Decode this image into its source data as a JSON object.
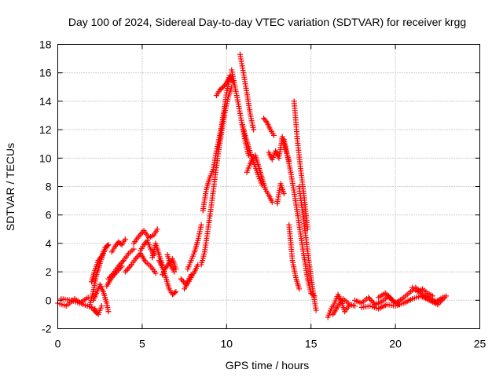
{
  "colors": {
    "series": "#ff0000",
    "axis": "#000000",
    "grid": "#a0a0a0"
  },
  "chart_data": {
    "type": "scatter",
    "title": "Day 100 of 2024, Sidereal Day-to-day VTEC variation (SDTVAR) for receiver krgg",
    "xlabel": "GPS time / hours",
    "ylabel": "SDTVAR / TECUs",
    "xlim": [
      0,
      25
    ],
    "ylim": [
      -2,
      18
    ],
    "xticks": [
      0,
      5,
      10,
      15,
      20,
      25
    ],
    "yticks": [
      -2,
      0,
      2,
      4,
      6,
      8,
      10,
      12,
      14,
      16,
      18
    ],
    "grid": true,
    "marker": "+",
    "series": [
      {
        "name": "SDTVAR",
        "segments": [
          {
            "x": [
              0,
              0.5,
              1.0,
              1.5,
              2.0,
              2.3
            ],
            "y": [
              -0.2,
              -0.4,
              0.1,
              -0.3,
              -0.5,
              -0.9
            ]
          },
          {
            "x": [
              0.2,
              0.8,
              1.3,
              1.8
            ],
            "y": [
              0.1,
              0.0,
              -0.2,
              0.2
            ]
          },
          {
            "x": [
              1.9,
              2.1,
              2.3,
              2.5,
              2.7,
              2.9,
              3.0
            ],
            "y": [
              -0.3,
              0.6,
              1.8,
              2.6,
              3.3,
              3.8,
              3.9
            ]
          },
          {
            "x": [
              2.0,
              2.2,
              2.4,
              2.6,
              2.8
            ],
            "y": [
              1.3,
              2.1,
              2.8,
              3.1,
              3.7
            ]
          },
          {
            "x": [
              2.1,
              2.3,
              2.5,
              2.7,
              2.9,
              3.0
            ],
            "y": [
              0.0,
              0.5,
              1.1,
              0.6,
              -0.2,
              -0.8
            ]
          },
          {
            "x": [
              2.2,
              2.4,
              2.6
            ],
            "y": [
              -0.6,
              -1.0,
              -0.4
            ]
          },
          {
            "x": [
              3.2,
              3.4,
              3.6,
              3.8,
              4.0
            ],
            "y": [
              3.4,
              3.8,
              4.1,
              3.9,
              4.3
            ]
          },
          {
            "x": [
              3.0,
              3.3,
              3.6,
              3.9,
              4.2,
              4.5
            ],
            "y": [
              1.5,
              1.9,
              2.4,
              2.8,
              3.3,
              3.6
            ]
          },
          {
            "x": [
              2.9,
              3.2,
              3.5,
              3.8
            ],
            "y": [
              1.0,
              1.6,
              2.0,
              2.4
            ]
          },
          {
            "x": [
              4.0,
              4.3,
              4.6,
              4.9,
              5.2,
              5.5,
              5.8
            ],
            "y": [
              2.0,
              2.4,
              2.9,
              3.3,
              2.7,
              2.4,
              1.9
            ]
          },
          {
            "x": [
              4.5,
              4.8,
              5.1,
              5.4,
              5.7,
              5.9
            ],
            "y": [
              4.0,
              4.5,
              4.9,
              4.4,
              4.6,
              5.0
            ]
          },
          {
            "x": [
              4.9,
              5.1,
              5.3,
              5.5,
              5.7
            ],
            "y": [
              3.5,
              3.9,
              4.2,
              3.6,
              3.2
            ]
          },
          {
            "x": [
              5.6,
              5.8,
              6.0,
              6.2
            ],
            "y": [
              3.0,
              4.0,
              3.2,
              2.5
            ]
          },
          {
            "x": [
              6.0,
              6.2,
              6.4,
              6.6,
              6.8,
              7.0
            ],
            "y": [
              2.8,
              2.3,
              1.6,
              0.8,
              0.4,
              0.6
            ]
          },
          {
            "x": [
              6.2,
              6.4,
              6.6,
              6.8,
              7.0
            ],
            "y": [
              1.8,
              2.3,
              2.6,
              2.9,
              2.2
            ]
          },
          {
            "x": [
              6.5,
              6.7,
              6.9
            ],
            "y": [
              3.2,
              2.4,
              2.0
            ]
          },
          {
            "x": [
              7.5,
              7.7,
              7.9,
              8.1,
              8.3
            ],
            "y": [
              0.8,
              1.2,
              1.6,
              2.0,
              2.5
            ]
          },
          {
            "x": [
              7.7,
              7.9,
              8.1,
              8.3,
              8.5
            ],
            "y": [
              2.2,
              2.8,
              3.4,
              4.2,
              5.3
            ]
          },
          {
            "x": [
              7.3,
              7.6,
              7.9
            ],
            "y": [
              1.5,
              1.1,
              1.8
            ]
          },
          {
            "x": [
              8.5,
              8.7,
              8.9,
              9.1,
              9.3,
              9.5,
              9.7,
              9.9,
              10.1,
              10.3
            ],
            "y": [
              2.5,
              3.4,
              5.0,
              6.7,
              8.5,
              10.3,
              11.8,
              13.2,
              14.3,
              15.0
            ]
          },
          {
            "x": [
              8.6,
              8.8,
              9.0,
              9.2,
              9.4,
              9.6,
              9.8,
              10.0,
              10.2,
              10.4
            ],
            "y": [
              6.3,
              7.8,
              8.6,
              9.2,
              10.5,
              11.6,
              13.0,
              14.6,
              15.8,
              15.3
            ]
          },
          {
            "x": [
              9.4,
              9.6,
              9.8,
              10.0,
              10.2
            ],
            "y": [
              14.4,
              14.8,
              15.0,
              15.3,
              15.8
            ]
          },
          {
            "x": [
              10.3,
              10.5,
              10.7,
              10.9,
              11.1,
              11.3
            ],
            "y": [
              16.2,
              15.0,
              13.8,
              12.5,
              11.2,
              10.2
            ]
          },
          {
            "x": [
              10.8,
              11.0,
              11.2,
              11.4,
              11.6
            ],
            "y": [
              17.3,
              16.0,
              14.6,
              13.1,
              12.0
            ]
          },
          {
            "x": [
              10.9,
              11.1,
              11.3,
              11.5,
              11.7,
              11.9,
              12.1
            ],
            "y": [
              12.5,
              11.6,
              10.8,
              10.0,
              9.4,
              8.7,
              8.1
            ]
          },
          {
            "x": [
              11.7,
              11.9,
              12.1,
              12.3,
              12.5,
              12.7
            ],
            "y": [
              10.2,
              9.4,
              8.6,
              7.8,
              7.4,
              6.9
            ]
          },
          {
            "x": [
              11.2,
              11.4,
              11.6
            ],
            "y": [
              9.0,
              9.6,
              10.1
            ]
          },
          {
            "x": [
              12.2,
              12.4,
              12.6,
              12.8
            ],
            "y": [
              12.8,
              12.5,
              12.0,
              11.6
            ]
          },
          {
            "x": [
              12.5,
              12.7,
              12.9,
              13.1,
              13.3,
              13.5,
              13.7
            ],
            "y": [
              10.4,
              9.9,
              10.5,
              10.0,
              11.5,
              10.6,
              9.8
            ]
          },
          {
            "x": [
              13.0,
              13.2,
              13.4
            ],
            "y": [
              6.8,
              8.2,
              7.5
            ]
          },
          {
            "x": [
              13.4,
              13.6,
              13.8,
              14.0,
              14.2,
              14.4,
              14.6
            ],
            "y": [
              11.3,
              10.2,
              9.0,
              7.6,
              6.1,
              4.5,
              3.0
            ]
          },
          {
            "x": [
              14.0,
              14.2,
              14.4,
              14.6,
              14.8
            ],
            "y": [
              14.0,
              11.2,
              9.1,
              7.2,
              5.0
            ]
          },
          {
            "x": [
              14.3,
              14.5,
              14.7,
              14.9,
              15.1,
              15.3
            ],
            "y": [
              8.0,
              6.2,
              4.4,
              2.5,
              0.8,
              -0.7
            ]
          },
          {
            "x": [
              13.7,
              13.9,
              14.1,
              14.3
            ],
            "y": [
              5.3,
              2.8,
              1.6,
              0.8
            ]
          },
          {
            "x": [
              14.6,
              14.8,
              15.0,
              15.2
            ],
            "y": [
              3.0,
              1.5,
              0.5,
              0.3
            ]
          },
          {
            "x": [
              16.0,
              16.2,
              16.4,
              16.6,
              16.8,
              17.0,
              17.3,
              17.6
            ],
            "y": [
              -1.2,
              -0.6,
              -0.2,
              0.4,
              -0.1,
              -0.8,
              -0.3,
              -0.4
            ]
          },
          {
            "x": [
              16.3,
              16.6,
              16.9,
              17.2
            ],
            "y": [
              -1.0,
              -0.4,
              0.1,
              -0.2
            ]
          },
          {
            "x": [
              17.6,
              18.0,
              18.4,
              18.8,
              19.2,
              19.6,
              20.0,
              20.4,
              20.8,
              21.2,
              21.6,
              22.0,
              22.4,
              22.8
            ],
            "y": [
              0.0,
              -0.2,
              0.2,
              -0.3,
              -0.1,
              0.3,
              -0.2,
              0.1,
              0.5,
              0.9,
              0.4,
              0.2,
              -0.1,
              0.2
            ]
          },
          {
            "x": [
              18.0,
              18.5,
              19.0,
              19.5,
              20.0,
              20.5,
              21.0,
              21.5,
              22.0,
              22.5,
              23.0
            ],
            "y": [
              -0.5,
              -0.4,
              -0.6,
              -0.3,
              -0.4,
              -0.2,
              0.1,
              0.3,
              0.0,
              -0.3,
              0.3
            ]
          },
          {
            "x": [
              19.0,
              19.4,
              19.8,
              20.2
            ],
            "y": [
              0.2,
              0.5,
              0.0,
              -0.3
            ]
          },
          {
            "x": [
              21.0,
              21.3,
              21.6,
              21.9,
              22.2
            ],
            "y": [
              0.9,
              0.6,
              0.8,
              0.5,
              0.3
            ]
          }
        ]
      }
    ]
  }
}
